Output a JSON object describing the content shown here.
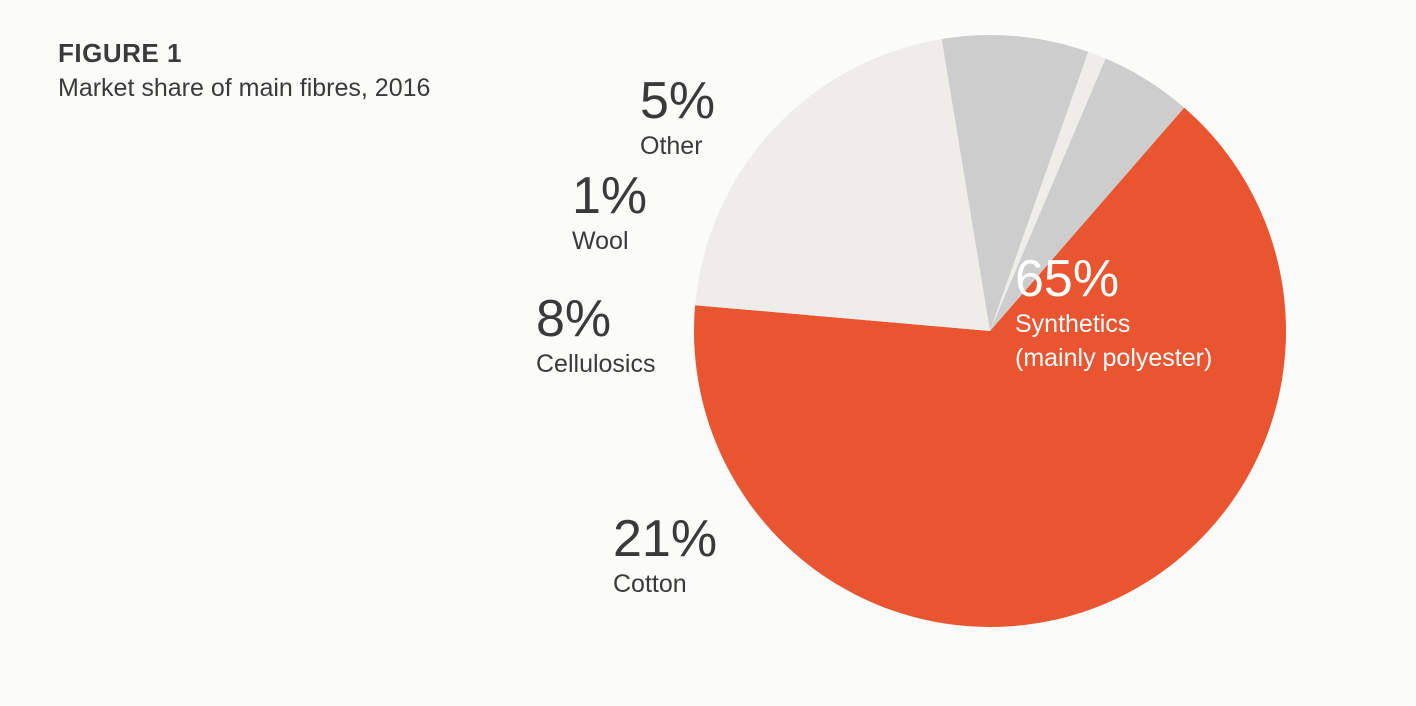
{
  "figure": {
    "label": "FIGURE 1",
    "title": "Market share of main fibres, 2016"
  },
  "chart_data": {
    "type": "pie",
    "start_angle_deg": -49,
    "direction": "clockwise",
    "slices": [
      {
        "label_lines": [
          "Synthetics",
          "(mainly polyester)"
        ],
        "value": 65,
        "display": "65%",
        "color": "#e85530",
        "text_color": "#ffffff"
      },
      {
        "label_lines": [
          "Cotton"
        ],
        "value": 21,
        "display": "21%",
        "color": "#eeedea",
        "text_color": "#3a3a3a"
      },
      {
        "label_lines": [
          "Cellulosics"
        ],
        "value": 8,
        "display": "8%",
        "color": "#cdcdcd",
        "text_color": "#3a3a3a"
      },
      {
        "label_lines": [
          "Wool"
        ],
        "value": 1,
        "display": "1%",
        "color": "#eeedea",
        "text_color": "#3a3a3a"
      },
      {
        "label_lines": [
          "Other"
        ],
        "value": 5,
        "display": "5%",
        "color": "#cdcdcd",
        "text_color": "#3a3a3a"
      }
    ]
  }
}
